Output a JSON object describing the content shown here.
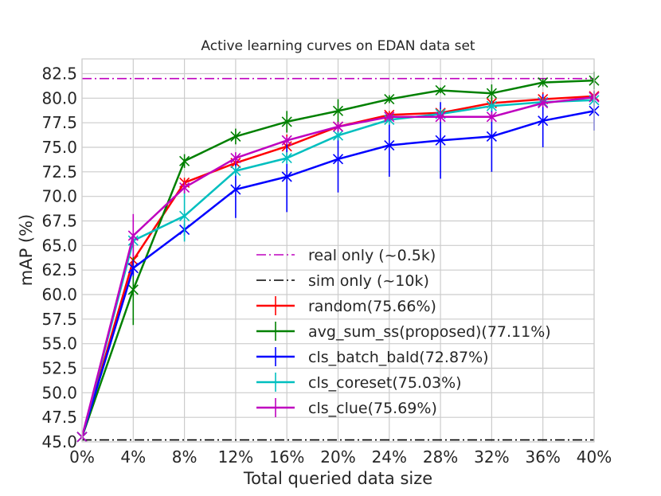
{
  "chart_data": {
    "type": "line",
    "title": "Active learning curves on EDAN data set",
    "xlabel": "Total queried data size",
    "ylabel": "mAP (%)",
    "x": [
      0,
      4,
      8,
      12,
      16,
      20,
      24,
      28,
      32,
      36,
      40
    ],
    "x_tick_labels": [
      "0%",
      "4%",
      "8%",
      "12%",
      "16%",
      "20%",
      "24%",
      "28%",
      "32%",
      "36%",
      "40%"
    ],
    "xlim": [
      0,
      40
    ],
    "ylim": [
      45,
      84
    ],
    "y_ticks": [
      45.0,
      47.5,
      50.0,
      52.5,
      55.0,
      57.5,
      60.0,
      62.5,
      65.0,
      67.5,
      70.0,
      72.5,
      75.0,
      77.5,
      80.0,
      82.5
    ],
    "y_tick_labels": [
      "45.0",
      "47.5",
      "50.0",
      "52.5",
      "55.0",
      "57.5",
      "60.0",
      "62.5",
      "65.0",
      "67.5",
      "70.0",
      "72.5",
      "75.0",
      "77.5",
      "80.0",
      "82.5"
    ],
    "grid": true,
    "legend_position": "lower-right",
    "reference_lines": [
      {
        "name": "real only (~0.5k)",
        "value": 82.0,
        "color": "#bf00bf",
        "style": "dashdot"
      },
      {
        "name": "sim only (~10k)",
        "value": 45.2,
        "color": "#000000",
        "style": "dashdot"
      }
    ],
    "series": [
      {
        "name": "random(75.66%)",
        "color": "#ff0000",
        "values": [
          45.5,
          63.5,
          71.4,
          73.4,
          75.1,
          77.1,
          78.3,
          78.5,
          79.5,
          79.9,
          80.2
        ],
        "errors": [
          0,
          1.5,
          0.5,
          0.5,
          1.2,
          0.6,
          0.4,
          0.5,
          0.6,
          0.7,
          0.6
        ]
      },
      {
        "name": "avg_sum_ss(proposed)(77.11%)",
        "color": "#008000",
        "values": [
          45.5,
          60.5,
          73.6,
          76.1,
          77.6,
          78.7,
          79.9,
          80.8,
          80.5,
          81.6,
          81.8
        ],
        "errors": [
          0,
          3.6,
          0.7,
          0.8,
          1.1,
          1.2,
          0.4,
          0.3,
          0.9,
          0.4,
          0.9
        ]
      },
      {
        "name": "cls_batch_bald(72.87%)",
        "color": "#0000ff",
        "values": [
          45.5,
          62.7,
          66.6,
          70.7,
          72.0,
          73.8,
          75.2,
          75.7,
          76.1,
          77.7,
          78.7
        ],
        "errors": [
          0,
          0.8,
          0.6,
          2.9,
          3.6,
          3.4,
          3.2,
          3.9,
          3.6,
          2.7,
          2.0
        ]
      },
      {
        "name": "cls_coreset(75.03%)",
        "color": "#00bfbf",
        "values": [
          45.5,
          65.5,
          68.0,
          72.6,
          73.9,
          76.2,
          77.8,
          78.4,
          79.2,
          79.6,
          79.8
        ],
        "errors": [
          0,
          0.5,
          2.6,
          0.5,
          0.6,
          0.5,
          0.5,
          0.5,
          0.5,
          0.4,
          0.5
        ]
      },
      {
        "name": "cls_clue(75.69%)",
        "color": "#bf00bf",
        "values": [
          45.5,
          66.0,
          70.9,
          73.9,
          75.7,
          77.1,
          78.1,
          78.1,
          78.1,
          79.5,
          80.1
        ],
        "errors": [
          0,
          2.2,
          0.6,
          0.6,
          0.4,
          0.5,
          0.4,
          0.5,
          0.5,
          0.4,
          0.4
        ]
      }
    ]
  }
}
